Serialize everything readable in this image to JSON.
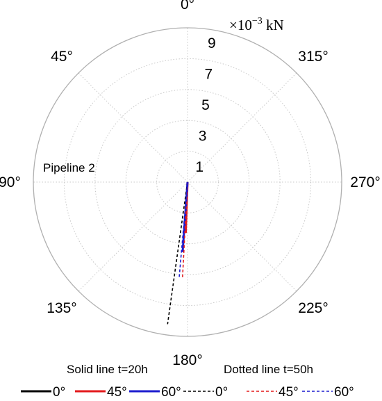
{
  "chart_data": {
    "type": "polar",
    "angle_ticks": [
      "0°",
      "315°",
      "270°",
      "225°",
      "180°",
      "135°",
      "90°",
      "45°"
    ],
    "angle_tick_values": [
      0,
      315,
      270,
      225,
      180,
      135,
      90,
      45
    ],
    "angle_direction": "counterclockwise",
    "zero_location": "top",
    "radial_ticks": [
      "1",
      "3",
      "5",
      "7",
      "9"
    ],
    "radial_tick_values": [
      1,
      3,
      5,
      7,
      9
    ],
    "radial_range": [
      0,
      10
    ],
    "radial_unit": {
      "base": "×10",
      "exp": "−3",
      "unit": " kN"
    },
    "annotation": "Pipeline 2",
    "legend": {
      "solid_title": "Solid line t=20h",
      "dotted_title": "Dotted line t=50h"
    },
    "series": [
      {
        "name": "0°",
        "group": "t=20h",
        "style": "solid",
        "color": "#000000",
        "angle": 180,
        "magnitude": 0.15
      },
      {
        "name": "45°",
        "group": "t=20h",
        "style": "solid",
        "color": "#e31a1c",
        "angle": 178,
        "magnitude": 3.3
      },
      {
        "name": "60°",
        "group": "t=20h",
        "style": "solid",
        "color": "#1c1ccf",
        "angle": 176,
        "magnitude": 4.55
      },
      {
        "name": "0°",
        "group": "t=50h",
        "style": "dotted",
        "color": "#000000",
        "angle": 172,
        "magnitude": 9.3
      },
      {
        "name": "45°",
        "group": "t=50h",
        "style": "dotted",
        "color": "#e31a1c",
        "angle": 177,
        "magnitude": 6.2
      },
      {
        "name": "60°",
        "group": "t=50h",
        "style": "dotted",
        "color": "#1c1ccf",
        "angle": 175,
        "magnitude": 6.3
      }
    ]
  }
}
